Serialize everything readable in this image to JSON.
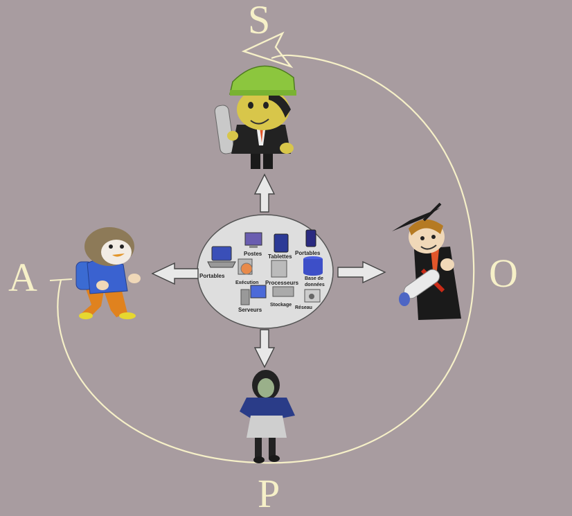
{
  "letters": {
    "s": "S",
    "a": "A",
    "o": "O",
    "p": "P"
  },
  "hub": {
    "labels": {
      "portables_left": "Portables",
      "postes": "Postes",
      "tablettes": "Tablettes",
      "portables_right": "Portables",
      "execution": "Exécution",
      "processeurs": "Processeurs",
      "base_donnees_1": "Base de",
      "base_donnees_2": "données",
      "serveurs": "Serveurs",
      "stockage": "Stockage",
      "reseau": "Réseau"
    }
  },
  "colors": {
    "background": "#a89ca0",
    "cycle_line": "#f6f0c8",
    "hub_fill": "#dedede",
    "arrow_fill": "#e8e8e8"
  },
  "characters": [
    {
      "role": "engineer",
      "icon": "engineer-hardhat-icon"
    },
    {
      "role": "child-walking",
      "icon": "child-backpack-icon"
    },
    {
      "role": "graduate",
      "icon": "graduate-diploma-icon"
    },
    {
      "role": "student-girl",
      "icon": "schoolgirl-icon"
    }
  ]
}
